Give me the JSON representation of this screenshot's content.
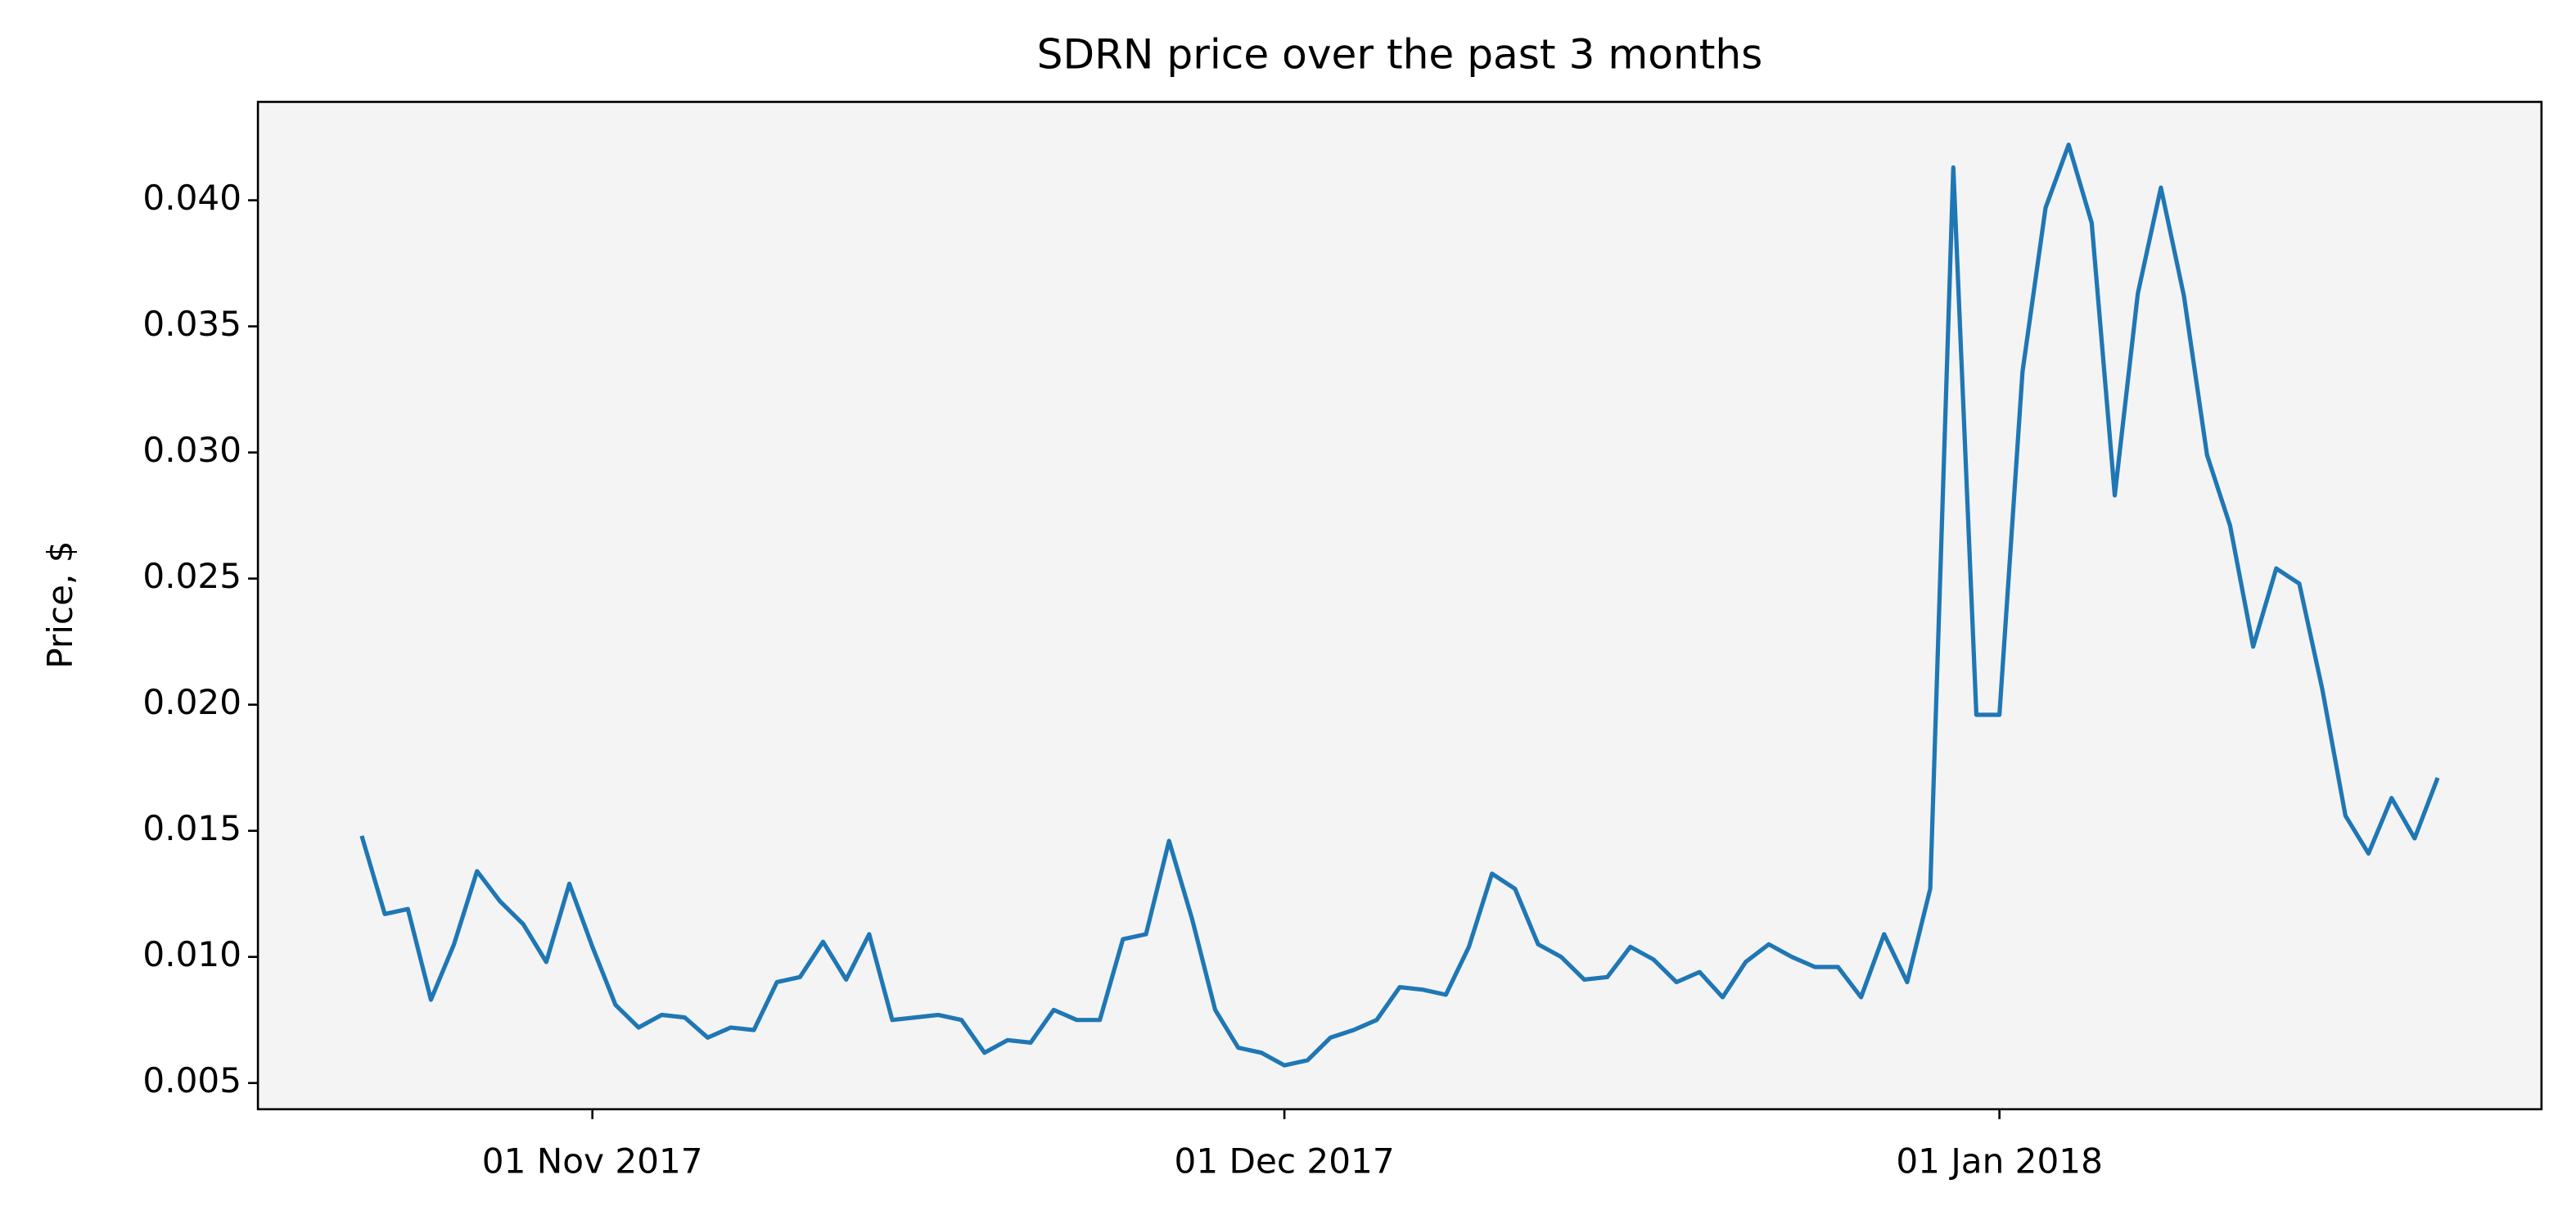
{
  "chart_data": {
    "type": "line",
    "title": "SDRN price over the past 3 months",
    "y_label": "Price, $",
    "x": [
      "2017-10-22",
      "2017-10-23",
      "2017-10-24",
      "2017-10-25",
      "2017-10-26",
      "2017-10-27",
      "2017-10-28",
      "2017-10-29",
      "2017-10-30",
      "2017-10-31",
      "2017-11-01",
      "2017-11-02",
      "2017-11-03",
      "2017-11-04",
      "2017-11-05",
      "2017-11-06",
      "2017-11-07",
      "2017-11-08",
      "2017-11-09",
      "2017-11-10",
      "2017-11-11",
      "2017-11-12",
      "2017-11-13",
      "2017-11-14",
      "2017-11-15",
      "2017-11-16",
      "2017-11-17",
      "2017-11-18",
      "2017-11-19",
      "2017-11-20",
      "2017-11-21",
      "2017-11-22",
      "2017-11-23",
      "2017-11-24",
      "2017-11-25",
      "2017-11-26",
      "2017-11-27",
      "2017-11-28",
      "2017-11-29",
      "2017-11-30",
      "2017-12-01",
      "2017-12-02",
      "2017-12-03",
      "2017-12-04",
      "2017-12-05",
      "2017-12-06",
      "2017-12-07",
      "2017-12-08",
      "2017-12-09",
      "2017-12-10",
      "2017-12-11",
      "2017-12-12",
      "2017-12-13",
      "2017-12-14",
      "2017-12-15",
      "2017-12-16",
      "2017-12-17",
      "2017-12-18",
      "2017-12-19",
      "2017-12-20",
      "2017-12-21",
      "2017-12-22",
      "2017-12-23",
      "2017-12-24",
      "2017-12-25",
      "2017-12-26",
      "2017-12-27",
      "2017-12-28",
      "2017-12-29",
      "2017-12-30",
      "2017-12-31",
      "2018-01-01",
      "2018-01-02",
      "2018-01-03",
      "2018-01-04",
      "2018-01-05",
      "2018-01-06",
      "2018-01-07",
      "2018-01-08",
      "2018-01-09",
      "2018-01-10",
      "2018-01-11",
      "2018-01-12",
      "2018-01-13",
      "2018-01-14",
      "2018-01-15",
      "2018-01-16",
      "2018-01-17",
      "2018-01-18",
      "2018-01-19",
      "2018-01-20"
    ],
    "series": [
      {
        "name": "SDRN",
        "color": "#1f77b4",
        "values": [
          0.0148,
          0.0117,
          0.0119,
          0.0083,
          0.0105,
          0.0134,
          0.0122,
          0.0113,
          0.0098,
          0.0129,
          0.0104,
          0.0081,
          0.0072,
          0.0077,
          0.0076,
          0.0068,
          0.0072,
          0.0071,
          0.009,
          0.0092,
          0.0106,
          0.0091,
          0.0109,
          0.0075,
          0.0076,
          0.0077,
          0.0075,
          0.0062,
          0.0067,
          0.0066,
          0.0079,
          0.0075,
          0.0075,
          0.0107,
          0.0109,
          0.0146,
          0.0115,
          0.0079,
          0.0064,
          0.0062,
          0.0057,
          0.0059,
          0.0068,
          0.0071,
          0.0075,
          0.0088,
          0.0087,
          0.0085,
          0.0104,
          0.0133,
          0.0127,
          0.0105,
          0.01,
          0.0091,
          0.0092,
          0.0104,
          0.0099,
          0.009,
          0.0094,
          0.0084,
          0.0098,
          0.0105,
          0.01,
          0.0096,
          0.0096,
          0.0084,
          0.0109,
          0.009,
          0.0127,
          0.0413,
          0.0196,
          0.0196,
          0.0332,
          0.0397,
          0.0422,
          0.0391,
          0.0283,
          0.0363,
          0.0405,
          0.0362,
          0.0299,
          0.0271,
          0.0223,
          0.0254,
          0.0248,
          0.0206,
          0.0156,
          0.0141,
          0.0163,
          0.0147,
          0.0171
        ]
      }
    ],
    "xlim": [
      "2017-10-17T12:00:00Z",
      "2018-01-24T12:00:00Z"
    ],
    "xticks": [
      {
        "value": "2017-11-01",
        "label": "01 Nov 2017"
      },
      {
        "value": "2017-12-01",
        "label": "01 Dec 2017"
      },
      {
        "value": "2018-01-01",
        "label": "01 Jan 2018"
      }
    ],
    "ylim": [
      0.00396,
      0.0439
    ],
    "yticks": [
      0.005,
      {
        "value": 0.01,
        "label": "0.010"
      },
      0.015,
      {
        "value": 0.02,
        "label": "0.020"
      },
      0.025,
      {
        "value": 0.03,
        "label": "0.030"
      },
      0.035,
      {
        "value": 0.04,
        "label": "0.040"
      }
    ],
    "background": "#f4f4f5",
    "grid": false
  }
}
